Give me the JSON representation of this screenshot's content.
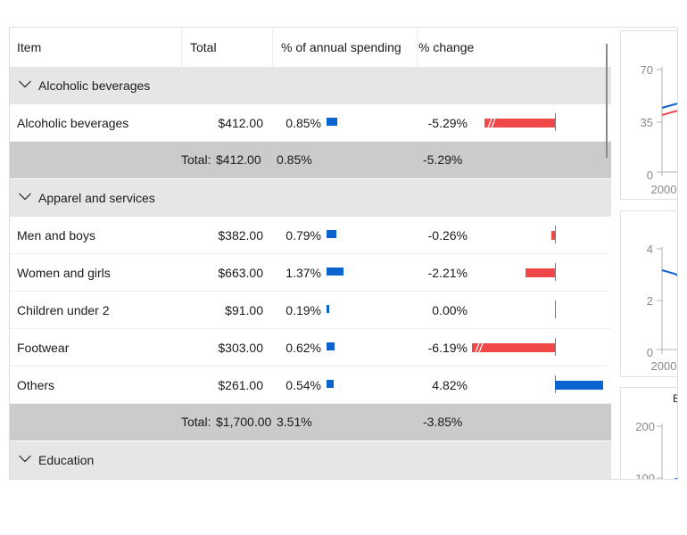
{
  "columns": [
    "Item",
    "Total",
    "% of annual spending",
    "% change"
  ],
  "groups": [
    {
      "label": "Alcoholic beverages",
      "rows": [
        {
          "item": "Alcoholic beverages",
          "total": "$412.00",
          "pct": "0.85%",
          "change": "-5.29%",
          "pct_value": 0.85,
          "change_value": -5.29
        }
      ],
      "summary": {
        "label": "Total:",
        "total": "$412.00",
        "pct": "0.85%",
        "change": "-5.29%"
      }
    },
    {
      "label": "Apparel and services",
      "rows": [
        {
          "item": "Men and boys",
          "total": "$382.00",
          "pct": "0.79%",
          "change": "-0.26%",
          "pct_value": 0.79,
          "change_value": -0.26
        },
        {
          "item": "Women and girls",
          "total": "$663.00",
          "pct": "1.37%",
          "change": "-2.21%",
          "pct_value": 1.37,
          "change_value": -2.21
        },
        {
          "item": "Children under 2",
          "total": "$91.00",
          "pct": "0.19%",
          "change": "0.00%",
          "pct_value": 0.19,
          "change_value": 0.0
        },
        {
          "item": "Footwear",
          "total": "$303.00",
          "pct": "0.62%",
          "change": "-6.19%",
          "pct_value": 0.62,
          "change_value": -6.19
        },
        {
          "item": "Others",
          "total": "$261.00",
          "pct": "0.54%",
          "change": "4.82%",
          "pct_value": 0.54,
          "change_value": 4.82
        }
      ],
      "summary": {
        "label": "Total:",
        "total": "$1,700.00",
        "pct": "3.51%",
        "change": "-3.85%"
      }
    },
    {
      "label": "Education",
      "rows": []
    }
  ],
  "side_charts": [
    {
      "ticks": [
        "70",
        "35",
        "0"
      ],
      "xlabel": "2000"
    },
    {
      "ticks": [
        "4",
        "2",
        "0"
      ],
      "xlabel": "2000"
    },
    {
      "ticks": [
        "200",
        "100"
      ],
      "title_fragment": "E"
    }
  ],
  "colors": {
    "positive": "#0b63ce",
    "negative": "#f04848",
    "group_bg": "#e6e6e6",
    "total_bg": "#cbcbcb"
  }
}
